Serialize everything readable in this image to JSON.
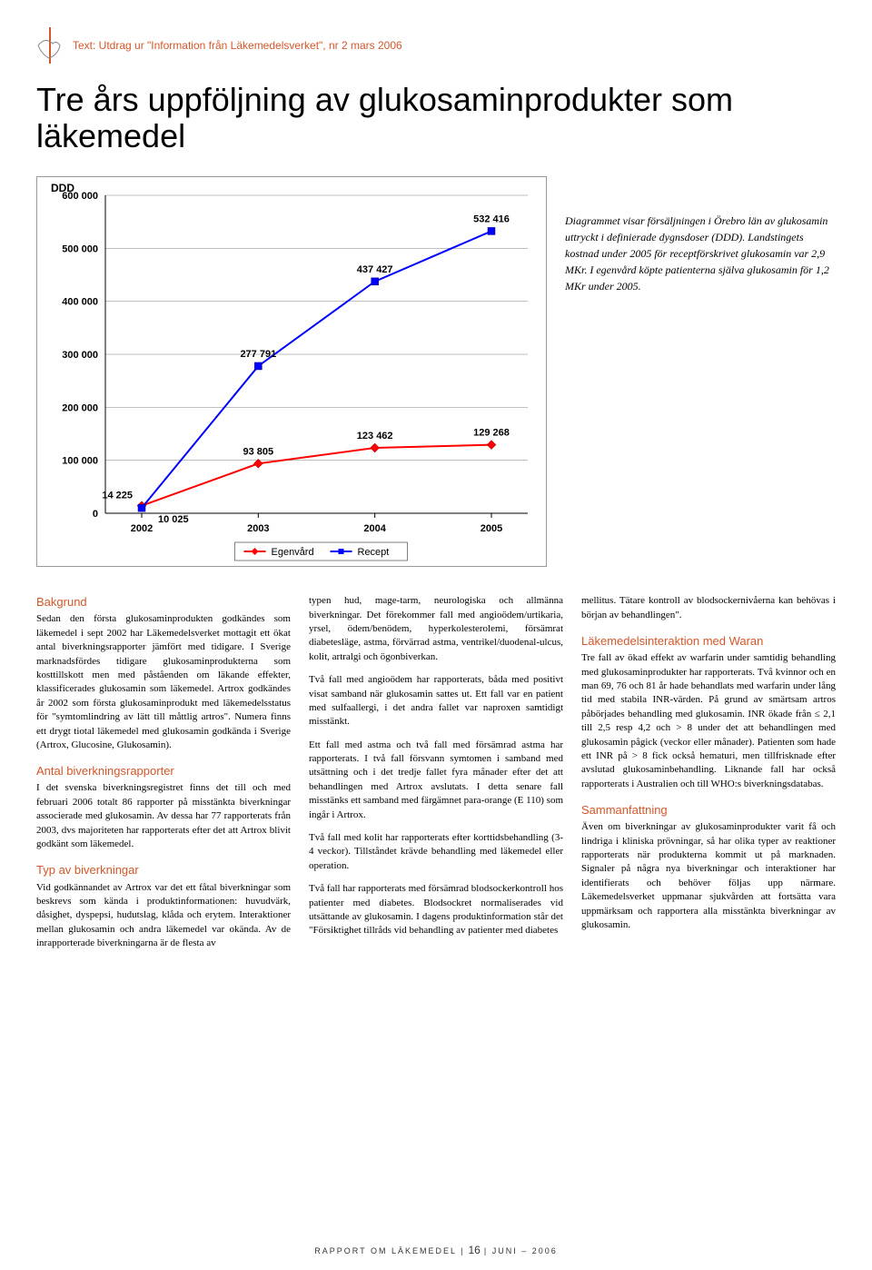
{
  "header": {
    "source": "Text: Utdrag ur \"Information från Läkemedelsverket\", nr 2 mars 2006",
    "title": "Tre års uppföljning av glukosaminprodukter som läkemedel"
  },
  "chart": {
    "type": "line",
    "y_axis_title": "DDD",
    "x_categories": [
      "2002",
      "2003",
      "2004",
      "2005"
    ],
    "y_ticks": [
      0,
      100000,
      200000,
      300000,
      400000,
      500000,
      600000
    ],
    "y_tick_labels": [
      "0",
      "100 000",
      "200 000",
      "300 000",
      "400 000",
      "500 000",
      "600 000"
    ],
    "ylim": [
      0,
      600000
    ],
    "series": [
      {
        "name": "Egenvård",
        "color": "#ff0000",
        "marker": "diamond",
        "values": [
          14225,
          93805,
          123462,
          129268
        ],
        "labels": [
          "14 225",
          "93 805",
          "123 462",
          "129 268"
        ]
      },
      {
        "name": "Recept",
        "color": "#0000ff",
        "marker": "square",
        "values": [
          10025,
          277791,
          437427,
          532416
        ],
        "labels": [
          "10 025",
          "277 791",
          "437 427",
          "532 416"
        ]
      }
    ],
    "line_width": 2,
    "grid_color": "#808080",
    "background_color": "#ffffff",
    "axis_font_size": 12,
    "tick_font_size": 11,
    "label_font_size": 11
  },
  "caption": "Diagrammet visar försäljningen i Örebro län av glukosamin uttryckt i definierade dygnsdoser (DDD). Landstingets kostnad under 2005 för receptförskrivet glukosamin var 2,9 MKr. I egenvård köpte patienterna själva glukosamin för 1,2 MKr under 2005.",
  "sections": {
    "bakgrund_h": "Bakgrund",
    "bakgrund_p": "Sedan den första glukosaminprodukten godkändes som läkemedel i sept 2002 har Läkemedelsverket mottagit ett ökat antal biverkningsrapporter jämfört med tidigare. I Sverige marknadsfördes tidigare glukosaminprodukterna som kosttillskott men med påståenden om läkande effekter, klassificerades glukosamin som läkemedel. Artrox godkändes år 2002 som första glukosaminprodukt med läkemedelsstatus för \"symtomlindring av lätt till måttlig artros\". Numera finns ett drygt tiotal läkemedel med glukosamin godkända i Sverige (Artrox, Glucosine, Glukosamin).",
    "antal_h": "Antal biverkningsrapporter",
    "antal_p": "I det svenska biverkningsregistret finns det till och med februari 2006 totalt 86 rapporter på misstänkta biverkningar associerade med glukosamin. Av dessa har 77 rapporterats från 2003, dvs majoriteten har rapporterats efter det att Artrox blivit godkänt som läkemedel.",
    "typ_h": "Typ av biverkningar",
    "typ_p": "Vid godkännandet av Artrox var det ett fåtal biverkningar som beskrevs som kända i produktinformationen: huvudvärk, dåsighet, dyspepsi, hudutslag, klåda och erytem. Interaktioner mellan glukosamin och andra läkemedel var okända.\nAv de inrapporterade biverkningarna är de flesta av",
    "col2_p1": "typen hud, mage-tarm, neurologiska och allmänna biverkningar.\nDet förekommer fall med angioödem/urtikaria, yrsel, ödem/benödem, hyperkolesterolemi, försämrat diabetesläge, astma, förvärrad astma, ventrikel/duodenal-ulcus, kolit, artralgi och ögonbiverkan.",
    "col2_p2": "Två fall med angioödem har rapporterats, båda med positivt visat samband när glukosamin sattes ut. Ett fall var en patient med sulfaallergi, i det andra fallet var naproxen samtidigt misstänkt.",
    "col2_p3": "Ett fall med astma och två fall med försämrad astma har rapporterats. I två fall försvann symtomen i samband med utsättning och i det tredje fallet fyra månader efter det att behandlingen med Artrox avslutats. I detta senare fall misstänks ett samband med färgämnet para-orange (E 110) som ingår i Artrox.",
    "col2_p4": "Två fall med kolit har rapporterats efter korttidsbehandling (3-4 veckor). Tillståndet krävde behandling med läkemedel eller operation.",
    "col2_p5": "Två fall har rapporterats med försämrad blodsockerkontroll hos patienter med diabetes. Blodsockret normaliserades vid utsättande av glukosamin. I dagens produktinformation står det \"Försiktighet tillråds vid behandling av patienter med diabetes",
    "col3_p1": "mellitus. Tätare kontroll av blodsockernivåerna kan behövas i början av behandlingen\".",
    "waran_h": "Läkemedelsinteraktion med Waran",
    "waran_p": "Tre fall av ökad effekt av warfarin under samtidig behandling med glukosaminprodukter har rapporterats. Två kvinnor och en man 69, 76 och 81 år hade behandlats med warfarin under lång tid med stabila INR-värden. På grund av smärtsam artros påbörjades behandling med glukosamin. INR ökade från ≤ 2,1 till 2,5 resp 4,2 och > 8 under det att behandlingen med glukosamin pågick (veckor eller månader). Patienten som hade ett INR på > 8 fick också hematuri, men tillfrisknade efter avslutad glukosaminbehandling. Liknande fall har också rapporterats i Australien och till WHO:s biverkningsdatabas.",
    "samman_h": "Sammanfattning",
    "samman_p": "Även om biverkningar av glukosaminprodukter varit få och lindriga i kliniska prövningar, så har olika typer av reaktioner rapporterats när produkterna kommit ut på marknaden. Signaler på några nya biverkningar och interaktioner har identifierats och behöver följas upp närmare. Läkemedelsverket uppmanar sjukvården att fortsätta vara uppmärksam och rapportera alla misstänkta biverkningar av glukosamin."
  },
  "footer": {
    "left": "RAPPORT OM LÄKEMEDEL",
    "page": "16",
    "right": "JUNI – 2006"
  }
}
